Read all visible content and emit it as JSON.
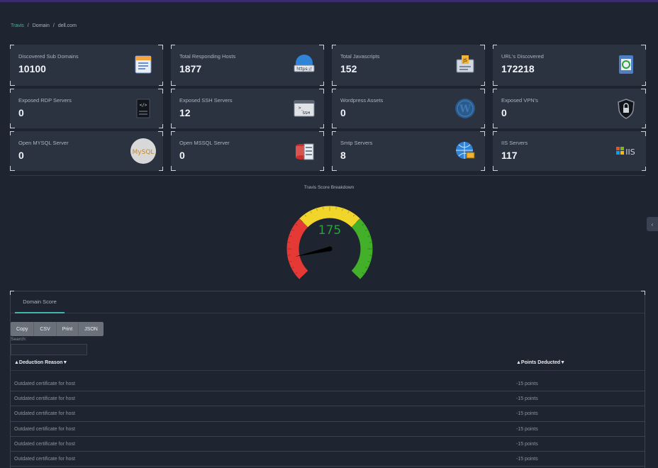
{
  "breadcrumb": {
    "root": "Travis",
    "sep1": "/",
    "domain_label": "Domain",
    "sep2": "/",
    "current": "dell.com"
  },
  "cards": [
    {
      "label": "Discovered Sub Domains",
      "value": "10100",
      "icon": "directory-icon"
    },
    {
      "label": "Total Responding Hosts",
      "value": "1877",
      "icon": "globe-http-icon",
      "icon_text": "https://"
    },
    {
      "label": "Total Javascripts",
      "value": "152",
      "icon": "javascript-file-icon",
      "icon_text": "JS"
    },
    {
      "label": "URL's Discovered",
      "value": "172218",
      "icon": "link-document-icon"
    },
    {
      "label": "Exposed RDP Servers",
      "value": "0",
      "icon": "rdp-server-icon"
    },
    {
      "label": "Exposed SSH Servers",
      "value": "12",
      "icon": "ssh-terminal-icon",
      "icon_text": "SSH"
    },
    {
      "label": "Wordpress Assets",
      "value": "0",
      "icon": "wordpress-icon"
    },
    {
      "label": "Exposed VPN's",
      "value": "0",
      "icon": "vpn-shield-icon"
    },
    {
      "label": "Open MYSQL Server",
      "value": "0",
      "icon": "mysql-icon",
      "icon_text": "MySQL"
    },
    {
      "label": "Open MSSQL Server",
      "value": "0",
      "icon": "mssql-database-icon"
    },
    {
      "label": "Smtp Servers",
      "value": "8",
      "icon": "smtp-globe-icon"
    },
    {
      "label": "IIS Servers",
      "value": "117",
      "icon": "iis-logo-icon",
      "icon_text": "IIS"
    }
  ],
  "gauge": {
    "title": "Travis Score Breakdown",
    "value": "175",
    "needle_fraction": 0.12,
    "colors": {
      "red": "#e53935",
      "yellow": "#f2d52a",
      "green": "#43b02a",
      "needle": "#000000",
      "value": "#2e9e3e"
    }
  },
  "side_tab": {
    "glyph": "‹"
  },
  "table": {
    "tab_label": "Domain Score",
    "buttons": [
      "Copy",
      "CSV",
      "Print",
      "JSON"
    ],
    "search_label": "Search:",
    "col1_header": "▲Deduction Reason▼",
    "col2_header": "▲Points Deducted▼",
    "rows": [
      {
        "reason": "Outdated certificate for host",
        "points": "-15 points"
      },
      {
        "reason": "Outdated certificate for host",
        "points": "-15 points"
      },
      {
        "reason": "Outdated certificate for host",
        "points": "-15 points"
      },
      {
        "reason": "Outdated certificate for host",
        "points": "-15 points"
      },
      {
        "reason": "Outdated certificate for host",
        "points": "-15 points"
      },
      {
        "reason": "Outdated certificate for host",
        "points": "-15 points"
      }
    ]
  },
  "colors": {
    "background": "#1f2530",
    "card": "#2b3240",
    "accent": "#3fb6a8"
  }
}
